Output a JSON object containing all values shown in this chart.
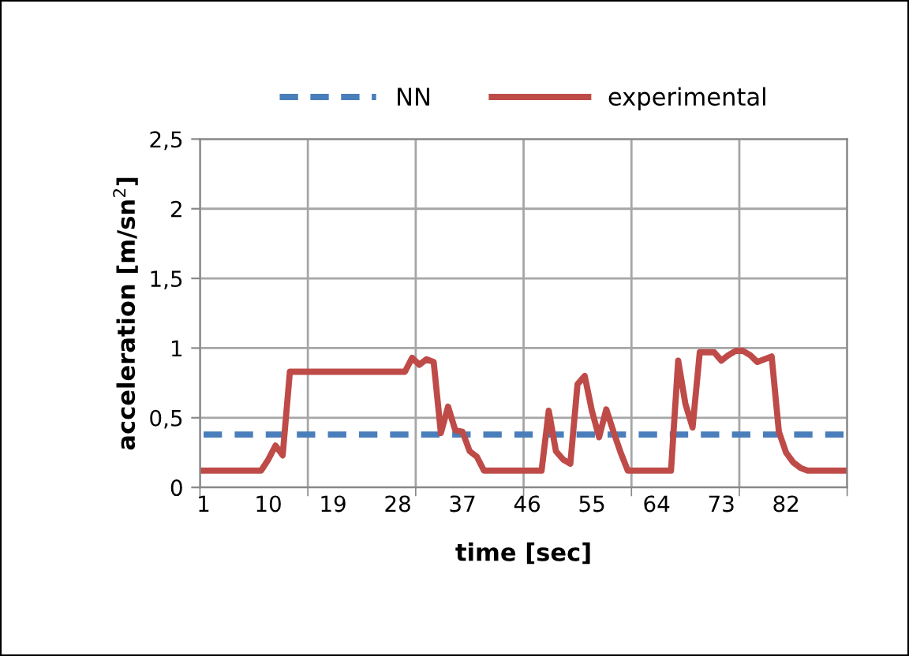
{
  "chart_data": {
    "type": "line",
    "xlabel": "time [sec]",
    "ylabel": "acceleration [m/sn$^{2}$]",
    "categories": [
      "1",
      null,
      null,
      null,
      null,
      null,
      null,
      null,
      null,
      "10",
      null,
      null,
      null,
      null,
      null,
      null,
      null,
      null,
      "19",
      null,
      null,
      null,
      null,
      null,
      null,
      null,
      null,
      "28",
      null,
      null,
      null,
      null,
      null,
      null,
      null,
      null,
      "37",
      null,
      null,
      null,
      null,
      null,
      null,
      null,
      null,
      "46",
      null,
      null,
      null,
      null,
      null,
      null,
      null,
      null,
      "55",
      null,
      null,
      null,
      null,
      null,
      null,
      null,
      null,
      "64",
      null,
      null,
      null,
      null,
      null,
      null,
      null,
      null,
      "73",
      null,
      null,
      null,
      null,
      null,
      null,
      null,
      null,
      "82",
      null,
      null,
      null,
      null,
      null,
      null,
      null,
      null
    ],
    "series": [
      {
        "name": "NN",
        "color": "#4a7ebb",
        "line_style": "dashed",
        "values": [
          0.38,
          0.38,
          0.38,
          0.38,
          0.38,
          0.38,
          0.38,
          0.38,
          0.38,
          0.38,
          0.38,
          0.38,
          0.38,
          0.38,
          0.38,
          0.38,
          0.38,
          0.38,
          0.38,
          0.38,
          0.38,
          0.38,
          0.38,
          0.38,
          0.38,
          0.38,
          0.38,
          0.38,
          0.38,
          0.38,
          0.38,
          0.38,
          0.38,
          0.38,
          0.38,
          0.38,
          0.38,
          0.38,
          0.38,
          0.38,
          0.38,
          0.38,
          0.38,
          0.38,
          0.38,
          0.38,
          0.38,
          0.38,
          0.38,
          0.38,
          0.38,
          0.38,
          0.38,
          0.38,
          0.38,
          0.38,
          0.38,
          0.38,
          0.38,
          0.38,
          0.38,
          0.38,
          0.38,
          0.38,
          0.38,
          0.38,
          0.38,
          0.38,
          0.38,
          0.38,
          0.38,
          0.38,
          0.38,
          0.38,
          0.38,
          0.38,
          0.38,
          0.38,
          0.38,
          0.38,
          0.38,
          0.38,
          0.38,
          0.38,
          0.38,
          0.38,
          0.38,
          0.38,
          0.38,
          0.38
        ]
      },
      {
        "name": "experimental",
        "color": "#be4b48",
        "line_style": "solid",
        "values": [
          0.12,
          0.12,
          0.12,
          0.12,
          0.12,
          0.12,
          0.12,
          0.12,
          0.12,
          0.2,
          0.3,
          0.23,
          0.83,
          0.83,
          0.83,
          0.83,
          0.83,
          0.83,
          0.83,
          0.83,
          0.83,
          0.83,
          0.83,
          0.83,
          0.83,
          0.83,
          0.83,
          0.83,
          0.83,
          0.93,
          0.88,
          0.92,
          0.9,
          0.39,
          0.58,
          0.41,
          0.4,
          0.26,
          0.22,
          0.12,
          0.12,
          0.12,
          0.12,
          0.12,
          0.12,
          0.12,
          0.12,
          0.12,
          0.55,
          0.26,
          0.2,
          0.17,
          0.74,
          0.8,
          0.55,
          0.36,
          0.56,
          0.4,
          0.25,
          0.12,
          0.12,
          0.12,
          0.12,
          0.12,
          0.12,
          0.12,
          0.91,
          0.6,
          0.43,
          0.97,
          0.97,
          0.97,
          0.91,
          0.95,
          0.98,
          0.98,
          0.95,
          0.9,
          0.92,
          0.94,
          0.4,
          0.25,
          0.18,
          0.14,
          0.12,
          0.12,
          0.12,
          0.12,
          0.12,
          0.12
        ]
      }
    ],
    "ylim": [
      0,
      2.5
    ],
    "yticks": [
      0,
      {
        "value": 0.5,
        "label": "0,5"
      },
      1,
      {
        "value": 1.5,
        "label": "1,5"
      },
      2,
      {
        "value": 2.5,
        "label": "2,5"
      }
    ],
    "grid": true,
    "legend": "top",
    "marker": "none"
  }
}
